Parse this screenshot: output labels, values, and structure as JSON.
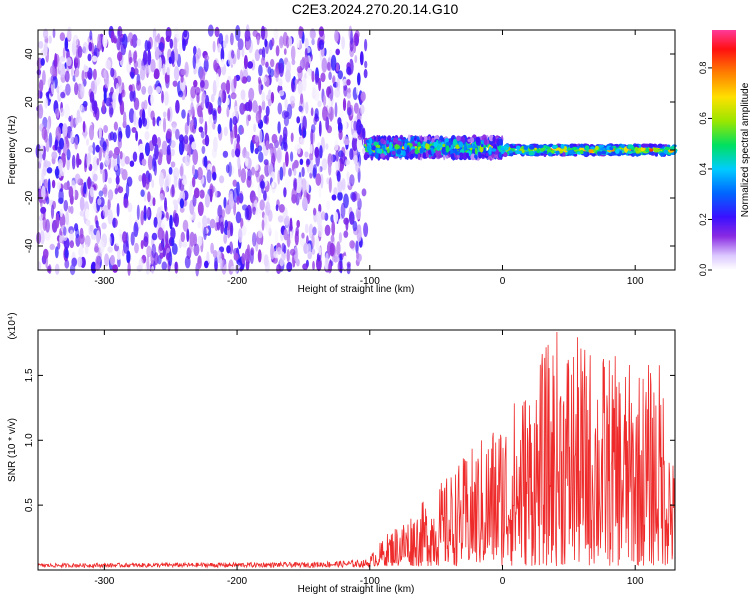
{
  "title": "C2E3.2024.270.20.14.G10",
  "chart_data": [
    {
      "type": "heatmap",
      "xlabel": "Height of straight line (km)",
      "ylabel": "Frequency (Hz)",
      "xlim": [
        -350,
        130
      ],
      "ylim": [
        -50,
        50
      ],
      "xticks": [
        -300,
        -200,
        -100,
        0,
        100
      ],
      "yticks": [
        -40,
        -20,
        0,
        20,
        40
      ],
      "colorbar": {
        "label": "Normalized spectral amplitude",
        "range": [
          0.0,
          0.95
        ],
        "ticks": [
          "0.0",
          "0.2",
          "0.4",
          "0.6",
          "0.8"
        ],
        "colormap": [
          "#e9e0ff",
          "#8a2be2",
          "#5a10e0",
          "#1a1aff",
          "#00c8ff",
          "#00e060",
          "#b0e000",
          "#ffd000",
          "#ff7a00",
          "#ff1010",
          "#ff3aa0"
        ]
      },
      "regions": [
        {
          "x": [
            -350,
            -103
          ],
          "freq_range": [
            -50,
            50
          ],
          "description_values": {
            "amplitude_range": [
              0.0,
              0.25
            ]
          }
        },
        {
          "x": [
            -103,
            0
          ],
          "center_freq": 1,
          "spread_hz": 4,
          "amplitude_range": [
            0.2,
            0.75
          ]
        },
        {
          "x": [
            0,
            130
          ],
          "center_freq": 0,
          "spread_hz": 2,
          "amplitude_range": [
            0.4,
            0.95
          ]
        }
      ]
    },
    {
      "type": "line",
      "xlabel": "Height of straight line (km)",
      "ylabel": "SNR (10 * v/v)",
      "y_multiplier": "(x10⁴)",
      "xlim": [
        -350,
        130
      ],
      "ylim": [
        0,
        1.85
      ],
      "xticks": [
        -300,
        -200,
        -100,
        0,
        100
      ],
      "yticks": [
        "0.5",
        "1.0",
        "1.5"
      ],
      "color": "#ee2a2a",
      "envelope": [
        {
          "x": -350,
          "y": 0.05
        },
        {
          "x": -150,
          "y": 0.06
        },
        {
          "x": -100,
          "y": 0.08
        },
        {
          "x": -85,
          "y": 0.28
        },
        {
          "x": -60,
          "y": 0.5
        },
        {
          "x": -40,
          "y": 0.72
        },
        {
          "x": -20,
          "y": 0.95
        },
        {
          "x": 0,
          "y": 1.2
        },
        {
          "x": 20,
          "y": 1.45
        },
        {
          "x": 40,
          "y": 1.85
        },
        {
          "x": 60,
          "y": 1.75
        },
        {
          "x": 80,
          "y": 1.65
        },
        {
          "x": 100,
          "y": 1.55
        },
        {
          "x": 120,
          "y": 1.6
        },
        {
          "x": 130,
          "y": 0.7
        }
      ]
    }
  ]
}
